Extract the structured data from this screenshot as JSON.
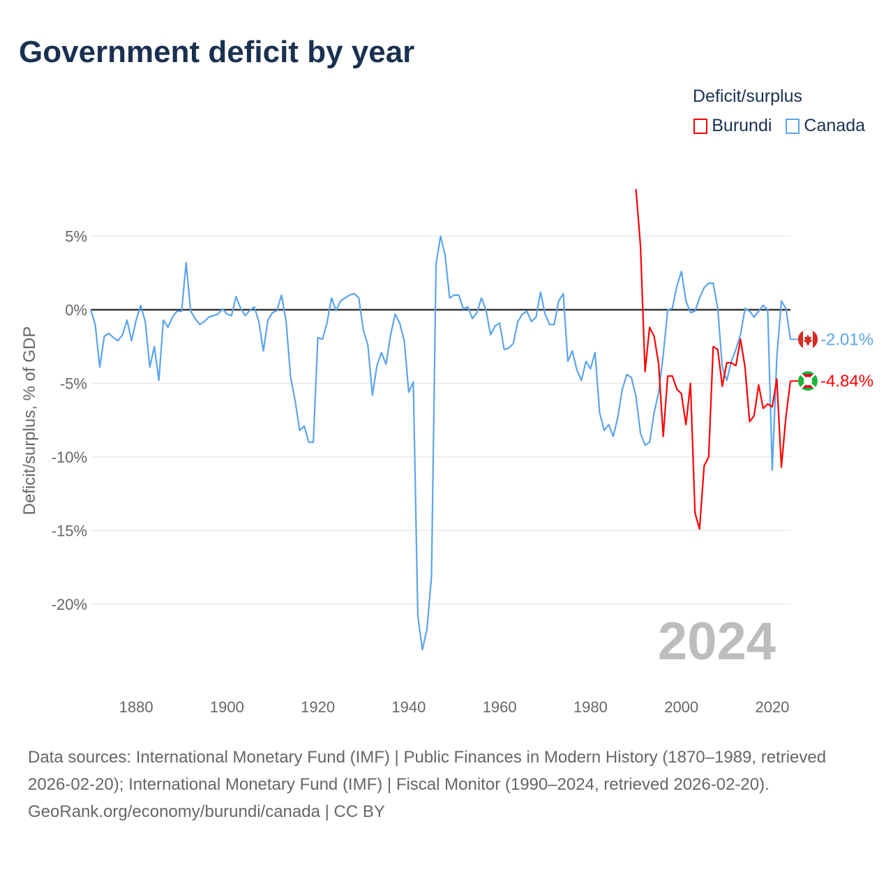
{
  "title": "Government deficit by year",
  "legend": {
    "title": "Deficit/surplus",
    "items": [
      "Burundi",
      "Canada"
    ]
  },
  "colors": {
    "Burundi": "#ff0000",
    "Canada": "#5ba4ec",
    "zero": "#333333",
    "grid": "#e6e6e6"
  },
  "year_watermark": "2024",
  "end_labels": {
    "Canada": "-2.01%",
    "Burundi": "-4.84%"
  },
  "footer": {
    "sources": "Data sources: International Monetary Fund (IMF) | Public Finances in Modern History (1870–1989, retrieved 2026-02-20); International Monetary Fund (IMF) | Fiscal Monitor (1990–2024, retrieved 2026-02-20).",
    "credit": "GeoRank.org/economy/burundi/canada | CC BY"
  },
  "chart_data": {
    "type": "line",
    "title": "Government deficit by year",
    "xlabel": "",
    "ylabel": "Deficit/surplus, % of GDP",
    "xlim": [
      1870,
      2024
    ],
    "ylim": [
      -24,
      8.5
    ],
    "x_ticks": [
      1880,
      1900,
      1920,
      1940,
      1960,
      1980,
      2000,
      2020
    ],
    "y_ticks": [
      5,
      0,
      -5,
      -10,
      -15,
      -20
    ],
    "y_tick_labels": [
      "5%",
      "0%",
      "-5%",
      "-10%",
      "-15%",
      "-20%"
    ],
    "x_tick_labels": [
      "1880",
      "1900",
      "1920",
      "1940",
      "1960",
      "1980",
      "2000",
      "2020"
    ],
    "grid": true,
    "legend_position": "top-right",
    "series": [
      {
        "name": "Canada",
        "start_year": 1870,
        "values": [
          0.0,
          -1.0,
          -3.9,
          -1.8,
          -1.6,
          -1.9,
          -2.1,
          -1.7,
          -0.7,
          -2.1,
          -0.7,
          0.3,
          -0.8,
          -3.9,
          -2.5,
          -4.8,
          -0.7,
          -1.2,
          -0.5,
          -0.1,
          -0.1,
          3.2,
          -0.1,
          -0.6,
          -1.0,
          -0.8,
          -0.5,
          -0.4,
          -0.3,
          0.05,
          -0.3,
          -0.4,
          0.9,
          0.1,
          -0.4,
          -0.05,
          0.2,
          -0.8,
          -2.8,
          -0.7,
          -0.2,
          -0.05,
          1.0,
          -0.8,
          -4.6,
          -6.2,
          -8.2,
          -7.9,
          -9.0,
          -9.0,
          -1.9,
          -2.0,
          -0.9,
          0.8,
          -0.05,
          0.6,
          0.8,
          1.0,
          1.1,
          0.8,
          -1.4,
          -2.4,
          -5.8,
          -3.8,
          -2.9,
          -3.7,
          -1.7,
          -0.3,
          -0.9,
          -2.1,
          -5.6,
          -4.9,
          -20.8,
          -23.1,
          -21.7,
          -18.1,
          3.1,
          5.0,
          3.7,
          0.8,
          1.0,
          1.0,
          0.05,
          0.2,
          -0.6,
          -0.2,
          0.8,
          0.0,
          -1.7,
          -1.1,
          -0.9,
          -2.7,
          -2.6,
          -2.3,
          -0.8,
          -0.3,
          -0.1,
          -0.8,
          -0.5,
          1.2,
          -0.3,
          -1.0,
          -1.0,
          0.6,
          1.1,
          -3.5,
          -2.8,
          -4.1,
          -4.8,
          -3.5,
          -4.0,
          -2.9,
          -7.0,
          -8.2,
          -7.8,
          -8.6,
          -7.3,
          -5.4,
          -4.4,
          -4.6,
          -5.9,
          -8.4,
          -9.2,
          -9.0,
          -7.0,
          -5.6,
          -3.1,
          0.0,
          0.1,
          1.6,
          2.6,
          0.6,
          -0.2,
          -0.1,
          0.8,
          1.5,
          1.8,
          1.8,
          0.1,
          -3.9,
          -4.8,
          -3.5,
          -2.7,
          -1.7,
          0.1,
          -0.1,
          -0.5,
          -0.1,
          0.3,
          0.0,
          -10.9,
          -3.2,
          0.6,
          0.1,
          -2.01
        ]
      },
      {
        "name": "Burundi",
        "start_year": 1990,
        "values": [
          8.2,
          4.3,
          -4.2,
          -1.2,
          -1.8,
          -3.7,
          -8.6,
          -4.5,
          -4.5,
          -5.4,
          -5.7,
          -7.8,
          -5.0,
          -13.8,
          -14.9,
          -10.6,
          -10.0,
          -2.5,
          -2.7,
          -5.2,
          -3.6,
          -3.6,
          -3.8,
          -2.0,
          -3.9,
          -7.6,
          -7.2,
          -5.1,
          -6.7,
          -6.4,
          -6.6,
          -4.7,
          -10.7,
          -7.3,
          -4.84
        ]
      }
    ]
  }
}
